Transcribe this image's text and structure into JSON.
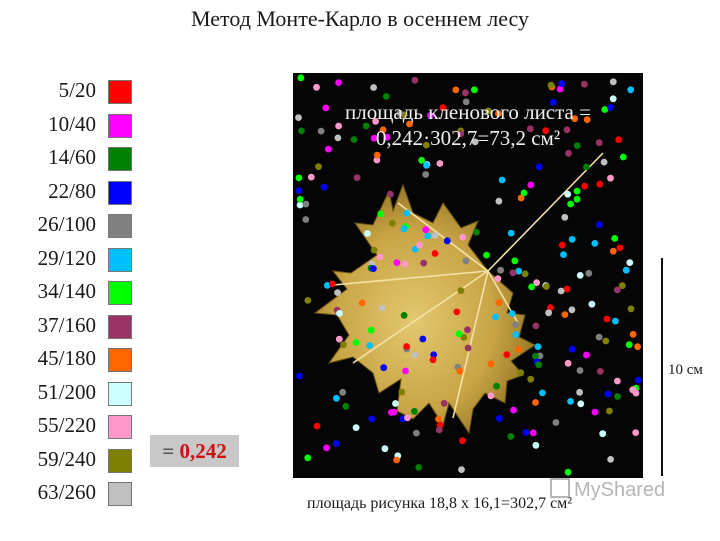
{
  "title": "Метод Монте-Карло в осеннем лесу",
  "legend": [
    {
      "label": "5/20",
      "color": "#ff0000"
    },
    {
      "label": "10/40",
      "color": "#ff00ff"
    },
    {
      "label": "14/60",
      "color": "#008000"
    },
    {
      "label": "22/80",
      "color": "#0000ff"
    },
    {
      "label": "26/100",
      "color": "#808080"
    },
    {
      "label": "29/120",
      "color": "#00bfff"
    },
    {
      "label": "34/140",
      "color": "#00ff00"
    },
    {
      "label": "37/160",
      "color": "#993366"
    },
    {
      "label": "45/180",
      "color": "#ff6600"
    },
    {
      "label": "51/200",
      "color": "#ccffff"
    },
    {
      "label": "55/220",
      "color": "#ff99cc"
    },
    {
      "label": "59/240",
      "color": "#808000"
    },
    {
      "label": "63/260",
      "color": "#c0c0c0"
    }
  ],
  "result": {
    "prefix": "= ",
    "value": "0,242"
  },
  "photo": {
    "caption_line1": "площадь кленового листа =",
    "caption_line2": "0,242·302,7=73,2 см²"
  },
  "scale": {
    "label": "10 см"
  },
  "bottom_caption": "площадь рисунка 18,8 x 16,1=302,7 см²",
  "watermark": "MyShared"
}
